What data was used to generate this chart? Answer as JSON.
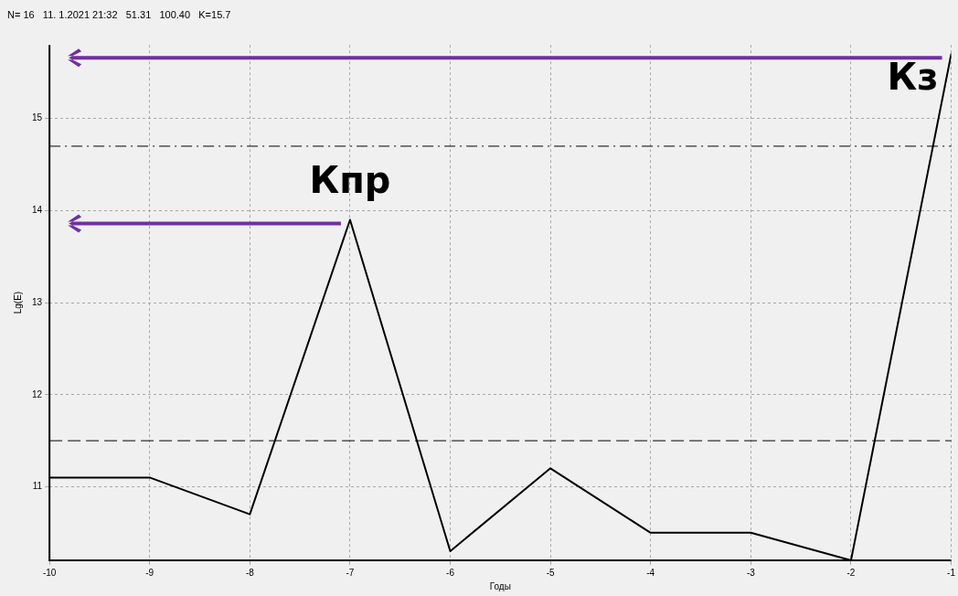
{
  "chart_data": {
    "type": "line",
    "title": "N= 16   11. 1.2021 21:32   51.31   100.40   K=15.7",
    "xlabel": "Годы",
    "ylabel": "Lg(E)",
    "x": [
      -10,
      -9,
      -8,
      -7,
      -6,
      -5,
      -4,
      -3,
      -2,
      -1
    ],
    "series": [
      {
        "color": "#000000",
        "values": [
          11.1,
          11.1,
          10.7,
          13.9,
          10.3,
          11.2,
          10.5,
          10.5,
          10.2,
          15.7
        ]
      }
    ],
    "xlim": [
      -10,
      -1
    ],
    "xticks": [
      -10,
      -9,
      -8,
      -7,
      -6,
      -5,
      -4,
      -3,
      -2,
      -1
    ],
    "ylim": [
      10.2,
      15.8
    ],
    "yticks": [
      11,
      12,
      13,
      14,
      15
    ],
    "grid": true,
    "marker": "none",
    "line_style": "solid",
    "legend": false,
    "ref_lines": [
      {
        "axis": "y",
        "value": 14.7,
        "line_style": "dashdot",
        "color": "#000000"
      },
      {
        "axis": "y",
        "value": 11.5,
        "line_style": "dashed",
        "color": "#000000"
      }
    ],
    "annotations": [
      {
        "text": "Кпр",
        "x": -7,
        "y": 13.9
      },
      {
        "text": "Кз",
        "x": -1,
        "y": 15.7
      }
    ]
  }
}
